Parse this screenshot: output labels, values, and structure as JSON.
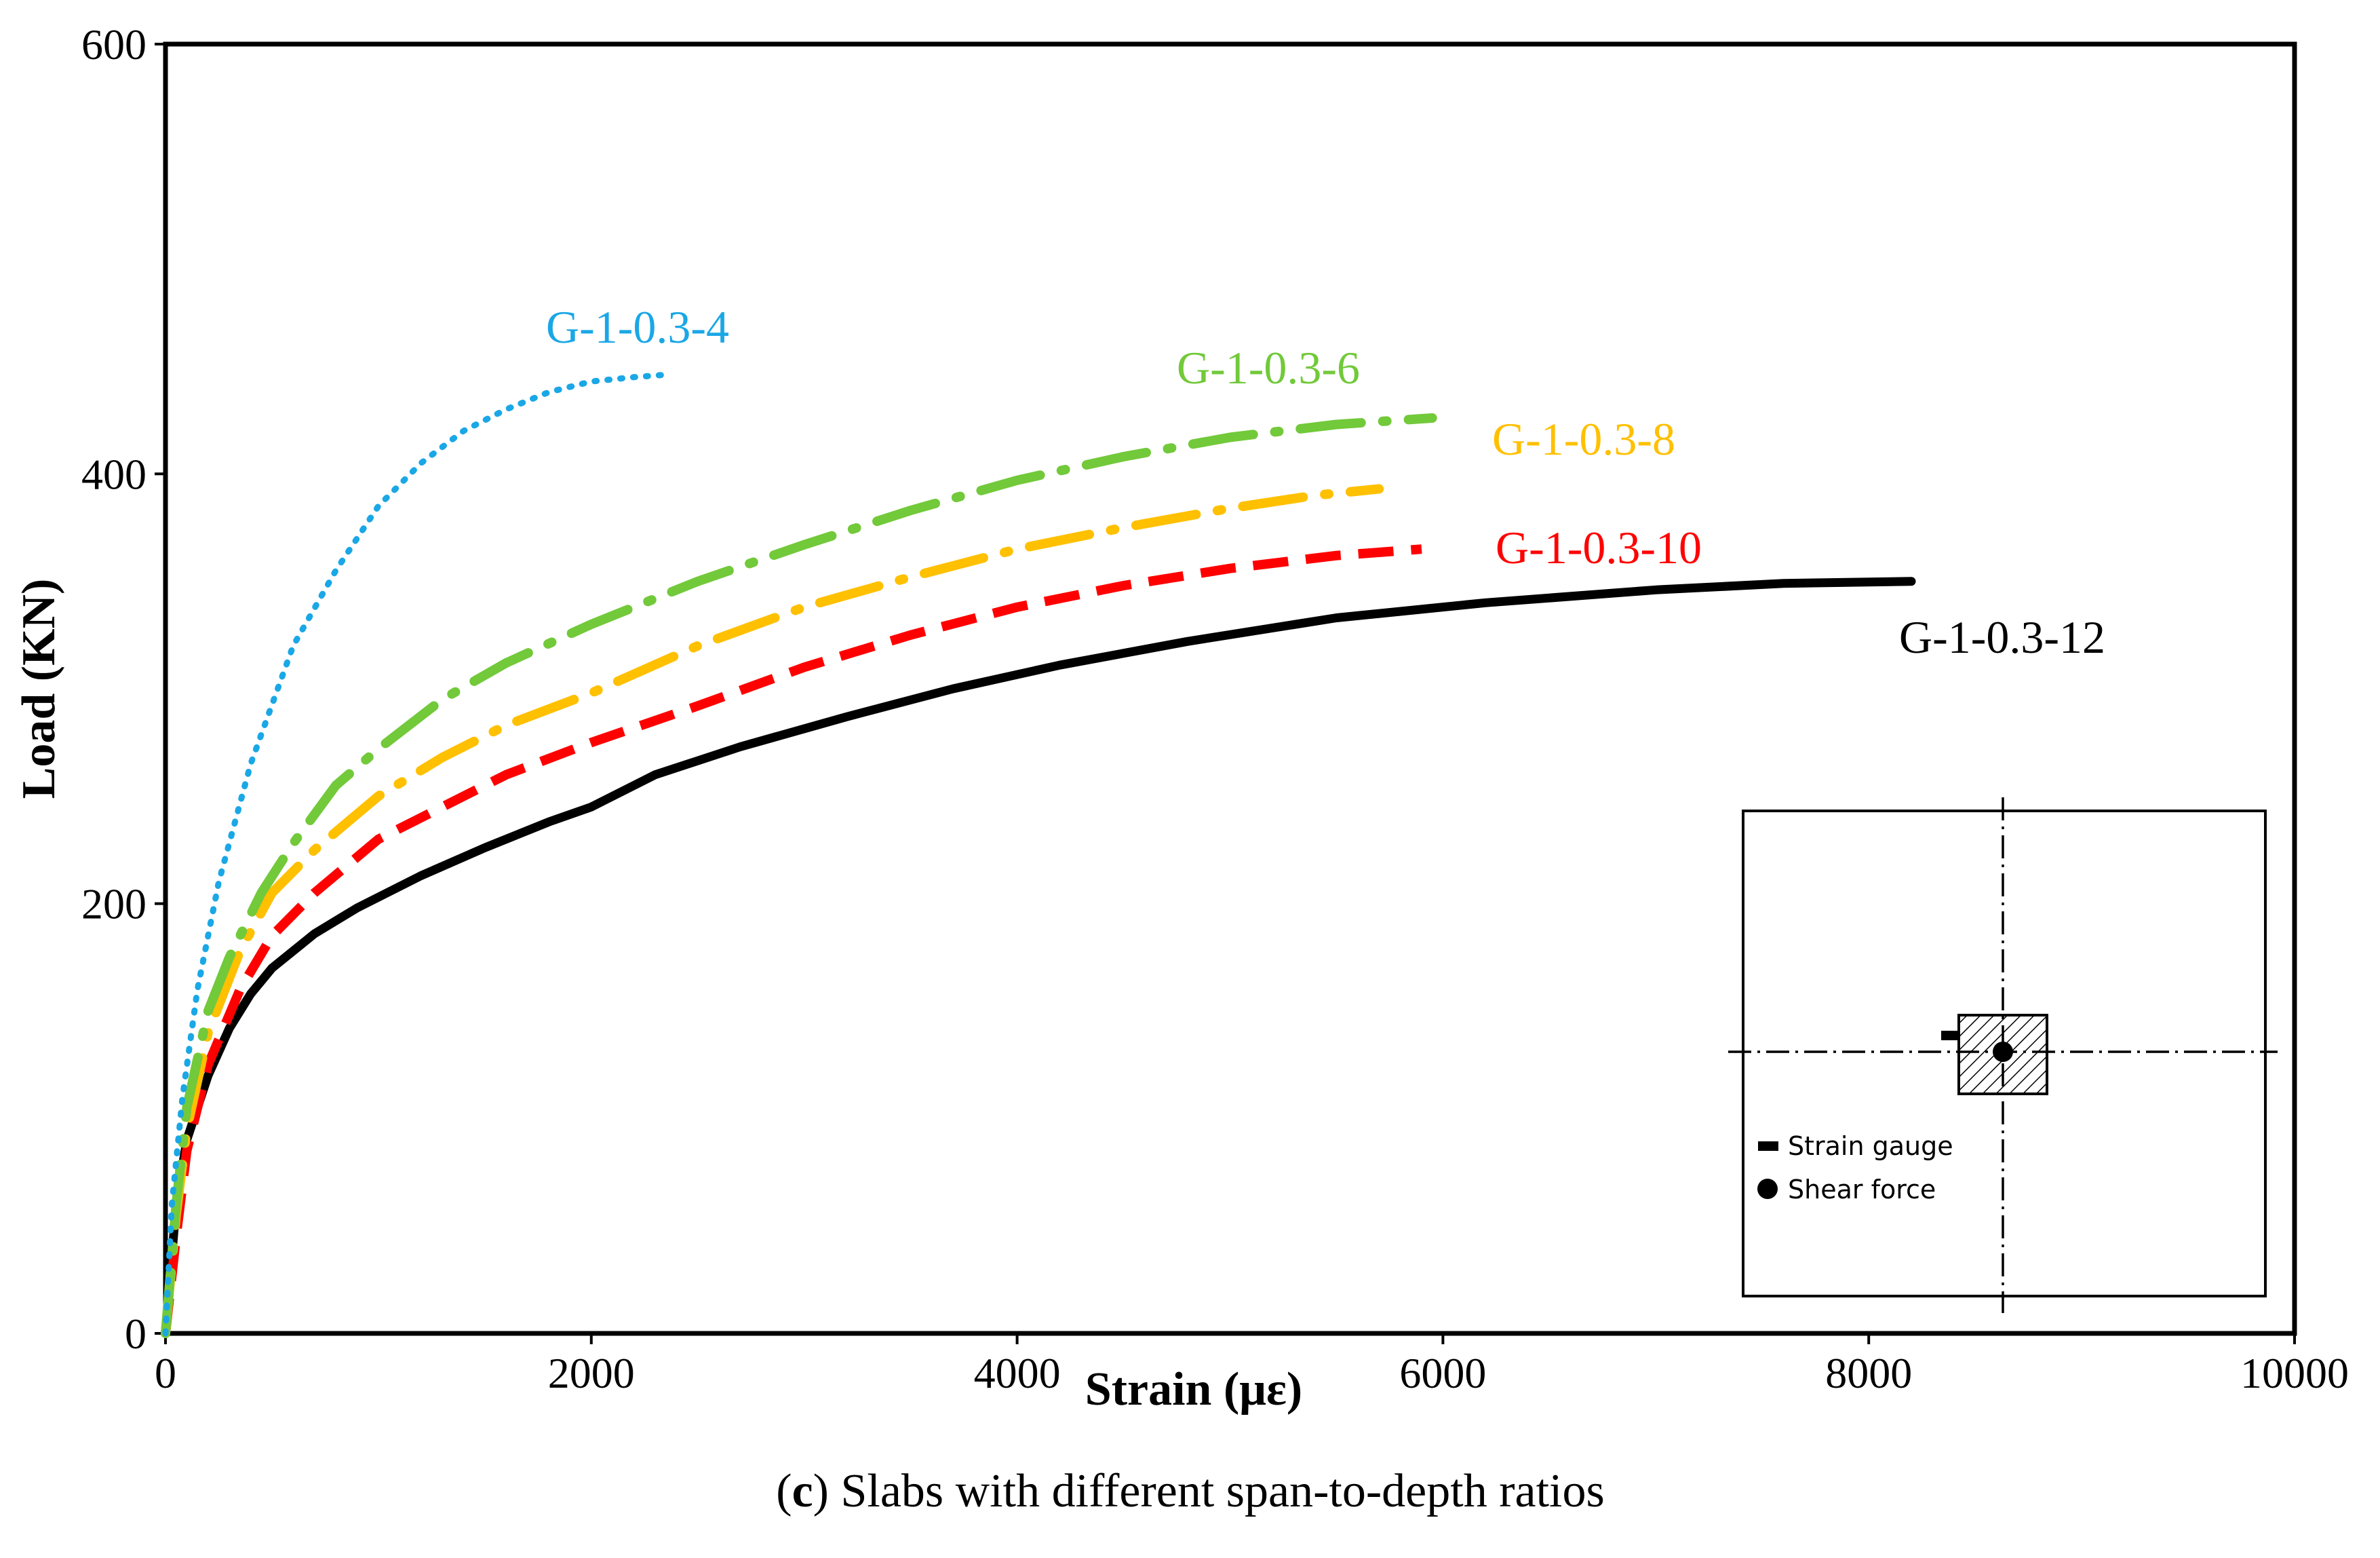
{
  "chart_data": {
    "type": "line",
    "title": "",
    "xlabel": "Strain (με)",
    "ylabel": "Load (KN)",
    "xlim": [
      0,
      10000
    ],
    "ylim": [
      0,
      600
    ],
    "xticks": [
      "0",
      "2000",
      "4000",
      "6000",
      "8000",
      "10000"
    ],
    "yticks": [
      "0",
      "200",
      "400",
      "600"
    ],
    "grid": false,
    "legend": "inline labels next to each curve",
    "series": [
      {
        "name": "G-1-0.3-4",
        "color": "#1aa7e6",
        "style": "dotted",
        "points": [
          [
            0,
            0
          ],
          [
            30,
            60
          ],
          [
            80,
            110
          ],
          [
            150,
            160
          ],
          [
            250,
            210
          ],
          [
            400,
            265
          ],
          [
            600,
            320
          ],
          [
            800,
            355
          ],
          [
            1000,
            385
          ],
          [
            1200,
            405
          ],
          [
            1400,
            420
          ],
          [
            1600,
            430
          ],
          [
            1800,
            438
          ],
          [
            2000,
            443
          ],
          [
            2200,
            445
          ],
          [
            2330,
            446
          ]
        ]
      },
      {
        "name": "G-1-0.3-6",
        "color": "#72c93a",
        "style": "dash-dot",
        "points": [
          [
            0,
            0
          ],
          [
            50,
            60
          ],
          [
            100,
            105
          ],
          [
            200,
            150
          ],
          [
            300,
            175
          ],
          [
            450,
            205
          ],
          [
            600,
            228
          ],
          [
            800,
            255
          ],
          [
            1000,
            272
          ],
          [
            1300,
            295
          ],
          [
            1600,
            312
          ],
          [
            2000,
            330
          ],
          [
            2500,
            350
          ],
          [
            3000,
            367
          ],
          [
            3500,
            383
          ],
          [
            4000,
            397
          ],
          [
            4500,
            408
          ],
          [
            5000,
            417
          ],
          [
            5500,
            423
          ],
          [
            5950,
            426
          ]
        ]
      },
      {
        "name": "G-1-0.3-8",
        "color": "#ffc000",
        "style": "dash-dot",
        "points": [
          [
            0,
            0
          ],
          [
            50,
            55
          ],
          [
            100,
            95
          ],
          [
            200,
            140
          ],
          [
            350,
            178
          ],
          [
            500,
            205
          ],
          [
            700,
            225
          ],
          [
            1000,
            250
          ],
          [
            1300,
            268
          ],
          [
            1600,
            283
          ],
          [
            2000,
            298
          ],
          [
            2500,
            320
          ],
          [
            3000,
            338
          ],
          [
            3500,
            352
          ],
          [
            4000,
            365
          ],
          [
            4500,
            375
          ],
          [
            5000,
            384
          ],
          [
            5400,
            390
          ],
          [
            5700,
            393
          ]
        ]
      },
      {
        "name": "G-1-0.3-10",
        "color": "#ff0000",
        "style": "dashed",
        "points": [
          [
            0,
            0
          ],
          [
            50,
            45
          ],
          [
            100,
            85
          ],
          [
            200,
            125
          ],
          [
            350,
            160
          ],
          [
            500,
            185
          ],
          [
            700,
            205
          ],
          [
            1000,
            230
          ],
          [
            1300,
            245
          ],
          [
            1600,
            260
          ],
          [
            2000,
            275
          ],
          [
            2500,
            292
          ],
          [
            3000,
            310
          ],
          [
            3500,
            325
          ],
          [
            4000,
            338
          ],
          [
            4500,
            348
          ],
          [
            5000,
            356
          ],
          [
            5500,
            362
          ],
          [
            5900,
            365
          ]
        ]
      },
      {
        "name": "G-1-0.3-12",
        "color": "#000000",
        "style": "solid",
        "points": [
          [
            0,
            0
          ],
          [
            50,
            60
          ],
          [
            100,
            90
          ],
          [
            200,
            120
          ],
          [
            300,
            142
          ],
          [
            400,
            158
          ],
          [
            500,
            170
          ],
          [
            700,
            186
          ],
          [
            900,
            198
          ],
          [
            1200,
            213
          ],
          [
            1500,
            226
          ],
          [
            1800,
            238
          ],
          [
            2000,
            245
          ],
          [
            2300,
            260
          ],
          [
            2700,
            273
          ],
          [
            3200,
            287
          ],
          [
            3700,
            300
          ],
          [
            4200,
            311
          ],
          [
            4800,
            322
          ],
          [
            5500,
            333
          ],
          [
            6200,
            340
          ],
          [
            7000,
            346
          ],
          [
            7600,
            349
          ],
          [
            8200,
            350
          ]
        ]
      }
    ]
  },
  "inset": {
    "legend": [
      {
        "symbol": "strain-gauge-mark",
        "label": "Strain gauge"
      },
      {
        "symbol": "shear-force-dot",
        "label": "Shear force"
      }
    ]
  },
  "caption": {
    "prefix": "(",
    "letter": "c",
    "text": ") Slabs with different span-to-depth ratios"
  }
}
